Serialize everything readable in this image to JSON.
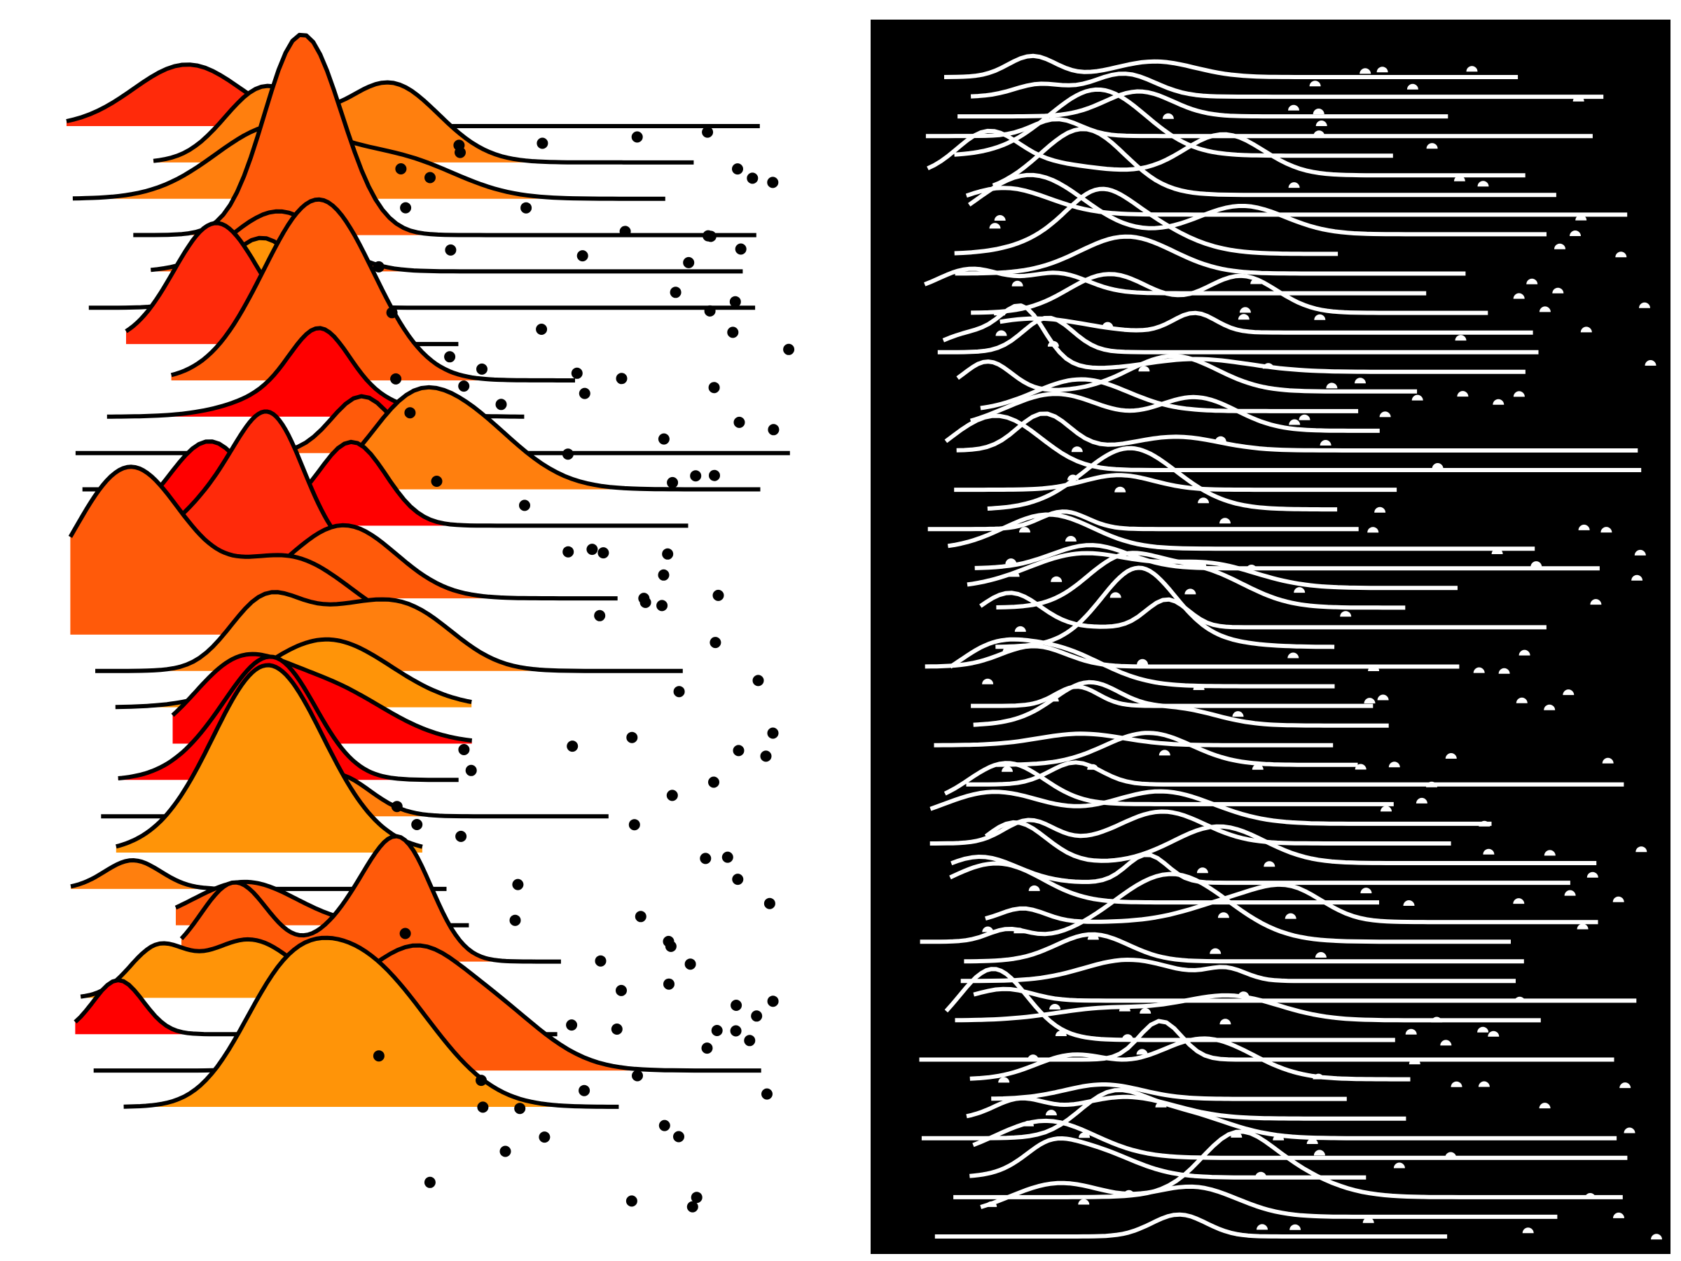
{
  "artwork": {
    "left_panel": {
      "background": "#ffffff",
      "outline_color": "#000000",
      "dot_color": "#000000",
      "fill_palette": [
        "#ff0000",
        "#ff2a0a",
        "#ff5a0a",
        "#ff7f0e",
        "#ff9408"
      ],
      "ridge_count": 28
    },
    "right_panel": {
      "background": "#000000",
      "line_color": "#ffffff",
      "dot_color": "#ffffff",
      "ridge_count": 60
    }
  }
}
